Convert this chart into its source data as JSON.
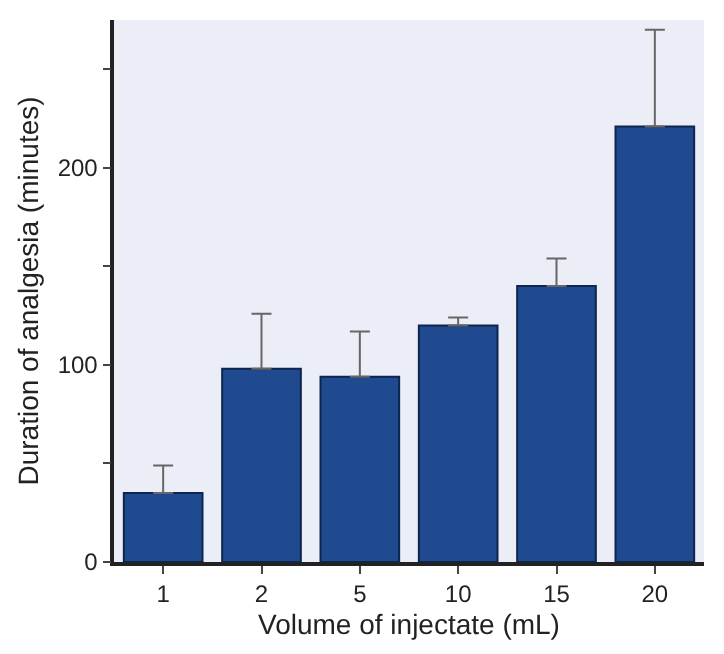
{
  "chart_data": {
    "type": "bar",
    "xlabel": "Volume of injectate (mL)",
    "ylabel": "Duration of analgesia (minutes)",
    "categories": [
      "1",
      "2",
      "5",
      "10",
      "15",
      "20"
    ],
    "values": [
      35,
      98,
      94,
      120,
      140,
      221
    ],
    "errors": [
      [
        35,
        49
      ],
      [
        98,
        126
      ],
      [
        94,
        117
      ],
      [
        120,
        124
      ],
      [
        140,
        154
      ],
      [
        221,
        270
      ]
    ],
    "color": "#1f4a8f",
    "ylim": [
      0,
      275
    ],
    "yticks": [
      0,
      {
        "value": 50,
        "label": null
      },
      100,
      {
        "value": 150,
        "label": null
      },
      200,
      {
        "value": 250,
        "label": null
      }
    ],
    "grid": false
  }
}
